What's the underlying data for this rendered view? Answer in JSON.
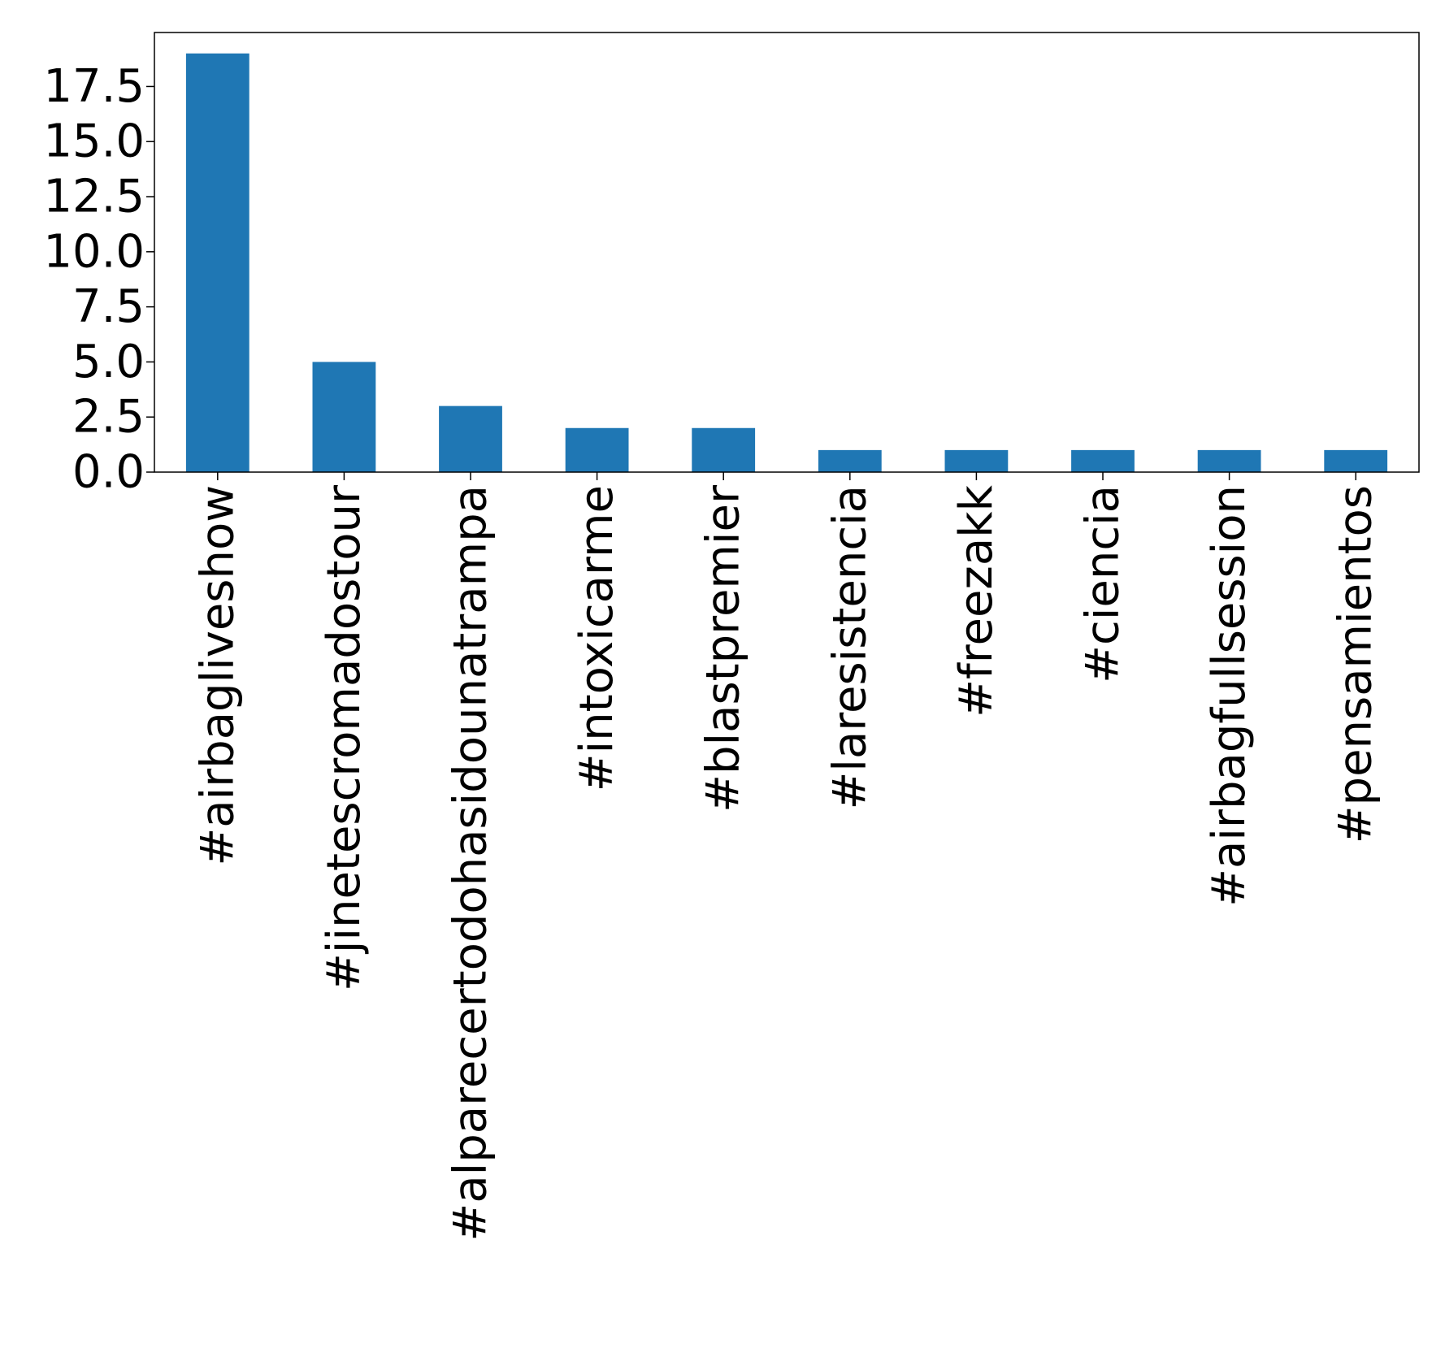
{
  "chart_data": {
    "type": "bar",
    "title": "",
    "xlabel": "",
    "ylabel": "",
    "categories": [
      "#airbagliveshow",
      "#jinetescromadostour",
      "#alparecertodohasidounatrampa",
      "#intoxicarme",
      "#blastpremier",
      "#laresistencia",
      "#freezakk",
      "#ciencia",
      "#airbagfullsession",
      "#pensamientos"
    ],
    "values": [
      19,
      5,
      3,
      2,
      2,
      1,
      1,
      1,
      1,
      1
    ],
    "ylim": [
      0,
      19.95
    ],
    "yticks": [
      0.0,
      2.5,
      5.0,
      7.5,
      10.0,
      12.5,
      15.0,
      17.5
    ],
    "ytick_labels": [
      "0.0",
      "2.5",
      "5.0",
      "7.5",
      "10.0",
      "12.5",
      "15.0",
      "17.5"
    ],
    "grid": false,
    "legend": "none",
    "colors": {
      "bar": "#1f77b4",
      "axis": "#000000",
      "background": "#ffffff"
    }
  }
}
